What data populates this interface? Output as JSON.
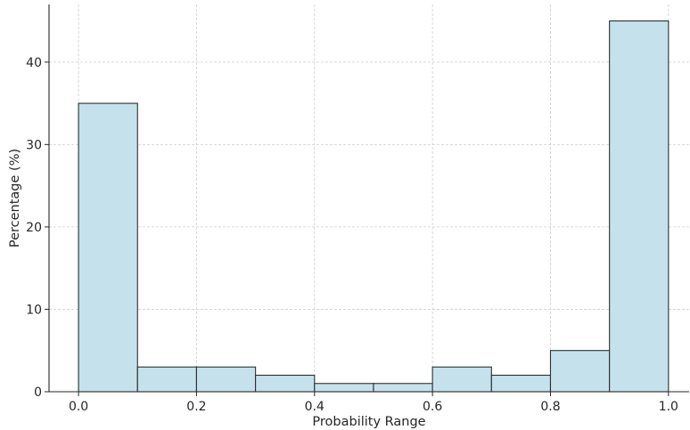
{
  "chart_data": {
    "type": "bar",
    "title": "",
    "xlabel": "Probability Range",
    "ylabel": "Percentage (%)",
    "bins": [
      [
        0.0,
        0.1
      ],
      [
        0.1,
        0.2
      ],
      [
        0.2,
        0.3
      ],
      [
        0.3,
        0.4
      ],
      [
        0.4,
        0.5
      ],
      [
        0.5,
        0.6
      ],
      [
        0.6,
        0.7
      ],
      [
        0.7,
        0.8
      ],
      [
        0.8,
        0.9
      ],
      [
        0.9,
        1.0
      ]
    ],
    "values": [
      35,
      3,
      3,
      2,
      1,
      1,
      3,
      2,
      5,
      45
    ],
    "xlim": [
      -0.05,
      1.035
    ],
    "ylim": [
      0,
      47
    ],
    "x_ticks": [
      "0.0",
      "0.2",
      "0.4",
      "0.6",
      "0.8",
      "1.0"
    ],
    "y_ticks": [
      "0",
      "10",
      "20",
      "30",
      "40"
    ],
    "grid": true,
    "bar_color": "#c5e2ec",
    "edge_color": "#2f2f2f"
  }
}
